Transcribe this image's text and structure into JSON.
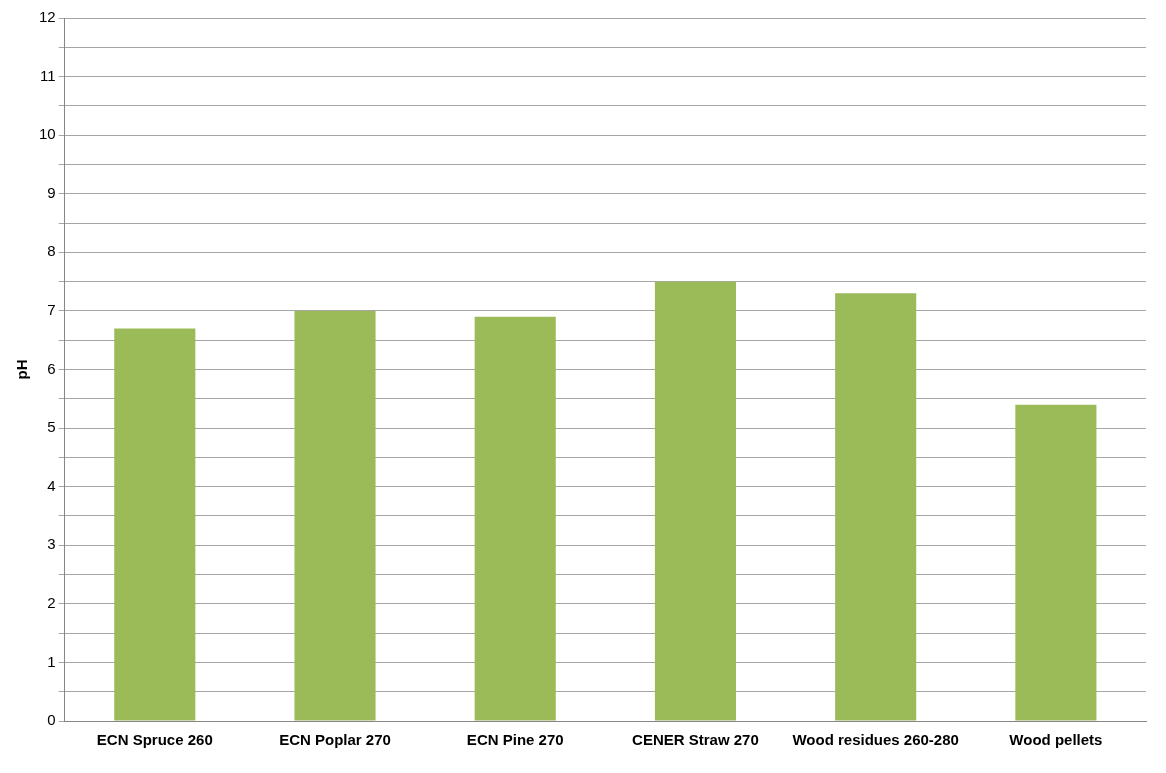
{
  "chart_data": {
    "type": "bar",
    "ylabel": "pH",
    "categories": [
      "ECN Spruce 260",
      "ECN Poplar 270",
      "ECN Pine 270",
      "CENER Straw 270",
      "Wood residues 260-280",
      "Wood pellets"
    ],
    "values": [
      6.7,
      7.0,
      6.9,
      7.5,
      7.3,
      5.4
    ],
    "color": "#9bbb59",
    "ylim": [
      0,
      12
    ],
    "yticks": [
      0,
      {
        "value": 0.5,
        "label": null
      },
      1,
      {
        "value": 1.5,
        "label": null
      },
      2,
      {
        "value": 2.5,
        "label": null
      },
      3,
      {
        "value": 3.5,
        "label": null
      },
      4,
      {
        "value": 4.5,
        "label": null
      },
      5,
      {
        "value": 5.5,
        "label": null
      },
      6,
      {
        "value": 6.5,
        "label": null
      },
      7,
      {
        "value": 7.5,
        "label": null
      },
      8,
      {
        "value": 8.5,
        "label": null
      },
      9,
      {
        "value": 9.5,
        "label": null
      },
      10,
      {
        "value": 10.5,
        "label": null
      },
      11,
      {
        "value": 11.5,
        "label": null
      },
      12
    ],
    "grid": "y",
    "legend": false
  }
}
